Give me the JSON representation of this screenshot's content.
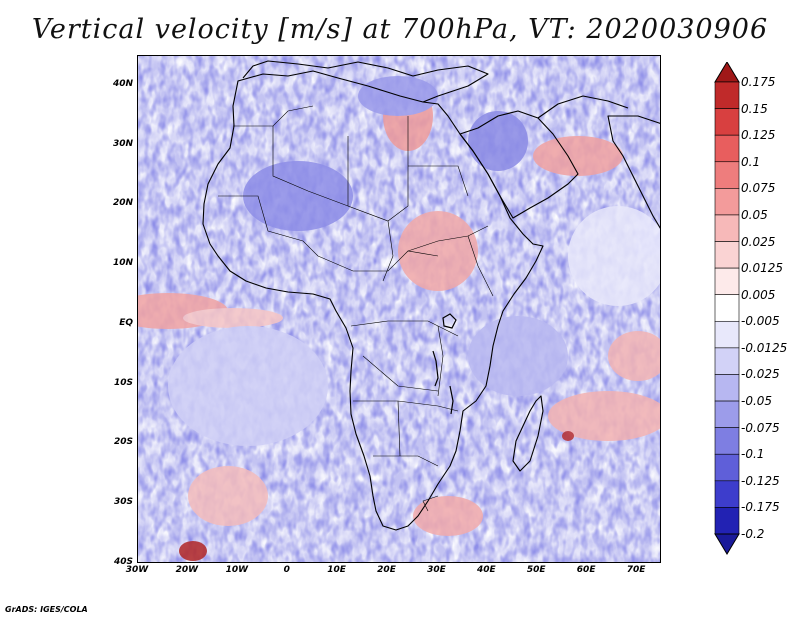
{
  "title": "Vertical velocity [m/s] at 700hPa, VT: 2020030906",
  "footer": "GrADS: IGES/COLA",
  "map": {
    "region": "Africa",
    "variable": "Vertical velocity",
    "units": "m/s",
    "level": "700hPa",
    "valid_time": "2020030906",
    "lat_ticks": [
      {
        "value": 40,
        "label": "40N"
      },
      {
        "value": 30,
        "label": "30N"
      },
      {
        "value": 20,
        "label": "20N"
      },
      {
        "value": 10,
        "label": "10N"
      },
      {
        "value": 0,
        "label": "EQ"
      },
      {
        "value": -10,
        "label": "10S"
      },
      {
        "value": -20,
        "label": "20S"
      },
      {
        "value": -30,
        "label": "30S"
      },
      {
        "value": -40,
        "label": "40S"
      }
    ],
    "lon_ticks": [
      {
        "value": -30,
        "label": "30W"
      },
      {
        "value": -20,
        "label": "20W"
      },
      {
        "value": -10,
        "label": "10W"
      },
      {
        "value": 0,
        "label": "0"
      },
      {
        "value": 10,
        "label": "10E"
      },
      {
        "value": 20,
        "label": "20E"
      },
      {
        "value": 30,
        "label": "30E"
      },
      {
        "value": 40,
        "label": "40E"
      },
      {
        "value": 50,
        "label": "50E"
      },
      {
        "value": 60,
        "label": "60E"
      },
      {
        "value": 70,
        "label": "70E"
      }
    ],
    "lon_range": [
      -30,
      75
    ],
    "lat_range": [
      -40,
      45
    ]
  },
  "colorbar": {
    "labels": [
      "0.175",
      "0.15",
      "0.125",
      "0.1",
      "0.075",
      "0.05",
      "0.025",
      "0.0125",
      "0.005",
      "-0.005",
      "-0.0125",
      "-0.025",
      "-0.05",
      "-0.075",
      "-0.1",
      "-0.125",
      "-0.175",
      "-0.2"
    ],
    "colors": [
      "#a01818",
      "#c02a2a",
      "#d84040",
      "#e85e5e",
      "#ee7d7d",
      "#f39b9b",
      "#f7b9b9",
      "#fad3d3",
      "#fdeaea",
      "#ffffff",
      "#e8e8fb",
      "#d2d2f7",
      "#b7b7f1",
      "#9c9cea",
      "#7e7ee2",
      "#5f5fd9",
      "#3d3dcc",
      "#2222b3",
      "#1a1a9a"
    ]
  }
}
